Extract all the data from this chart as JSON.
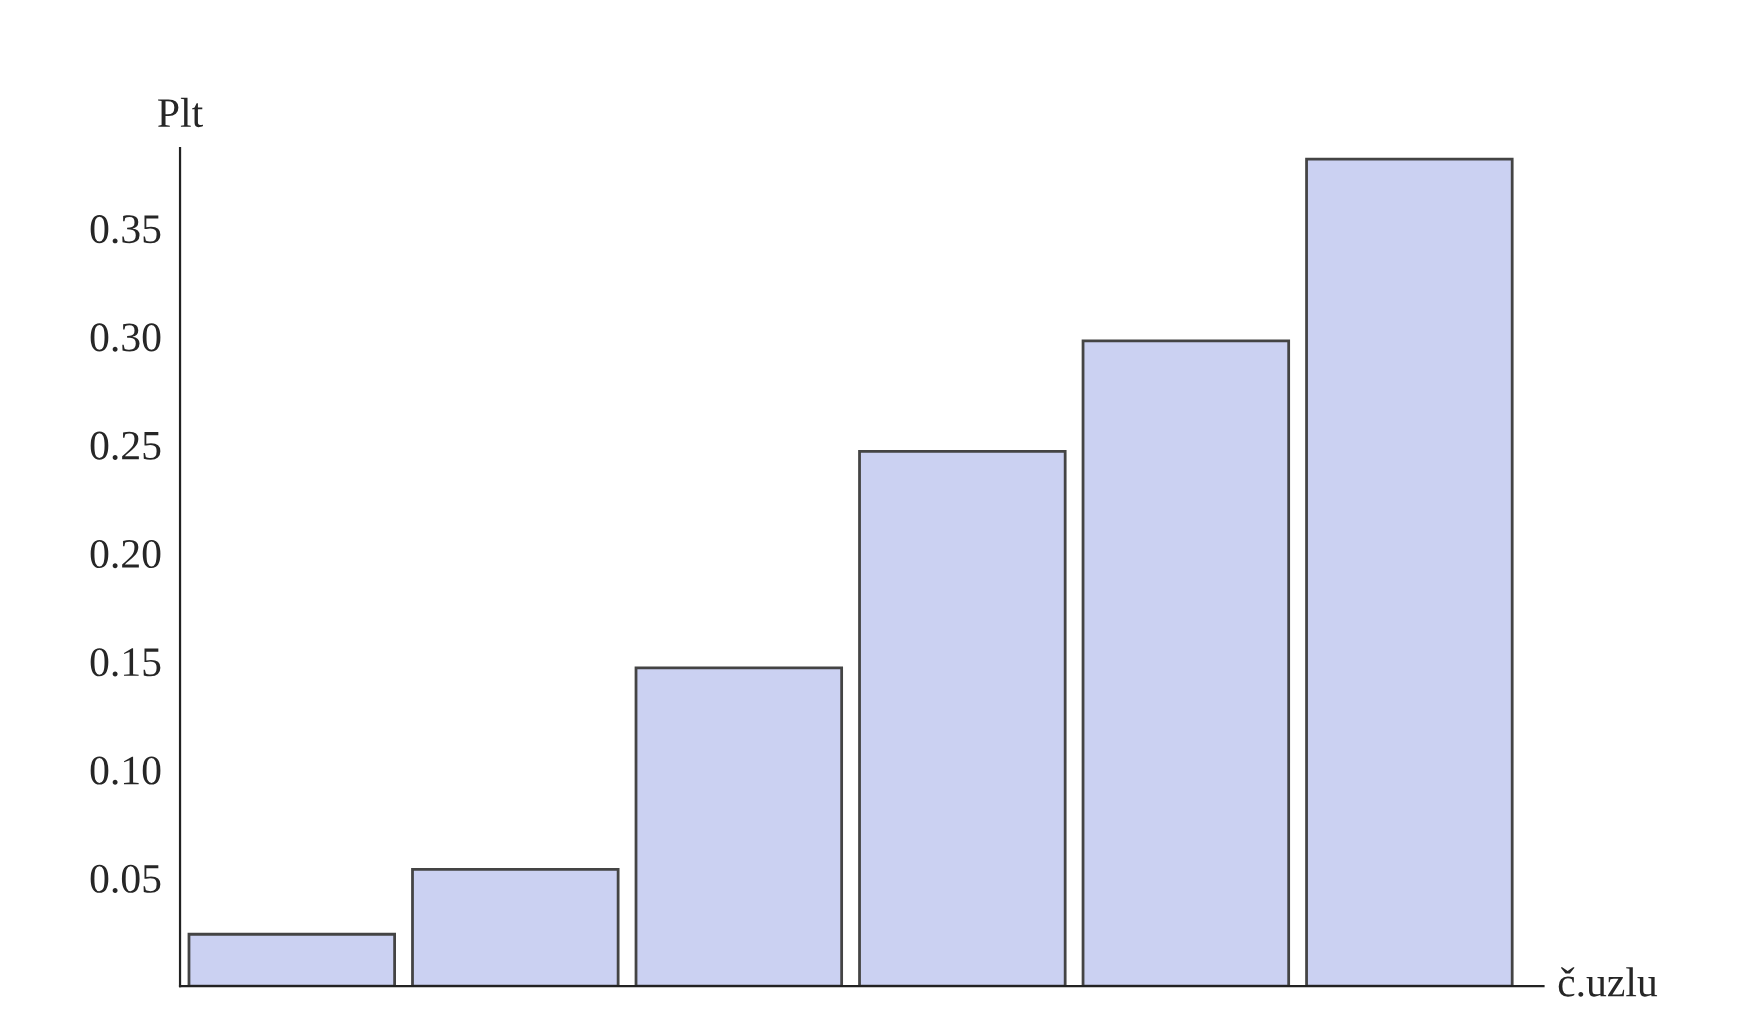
{
  "chart_data": {
    "type": "bar",
    "xlabel": "č.uzlu",
    "ylabel": "Plt",
    "categories": [
      null,
      null,
      null,
      null,
      null,
      null
    ],
    "values": [
      0.024,
      0.054,
      0.147,
      0.247,
      0.298,
      0.382
    ],
    "color": "#cbd1f2",
    "ylim": [
      0,
      0.387
    ],
    "yticks": [
      {
        "value": 0.05,
        "label": "0.05"
      },
      {
        "value": 0.1,
        "label": "0.10"
      },
      {
        "value": 0.15,
        "label": "0.15"
      },
      {
        "value": 0.2,
        "label": "0.20"
      },
      {
        "value": 0.25,
        "label": "0.25"
      },
      {
        "value": 0.3,
        "label": "0.30"
      },
      {
        "value": 0.35,
        "label": "0.35"
      }
    ],
    "grid": false,
    "legend": false
  }
}
